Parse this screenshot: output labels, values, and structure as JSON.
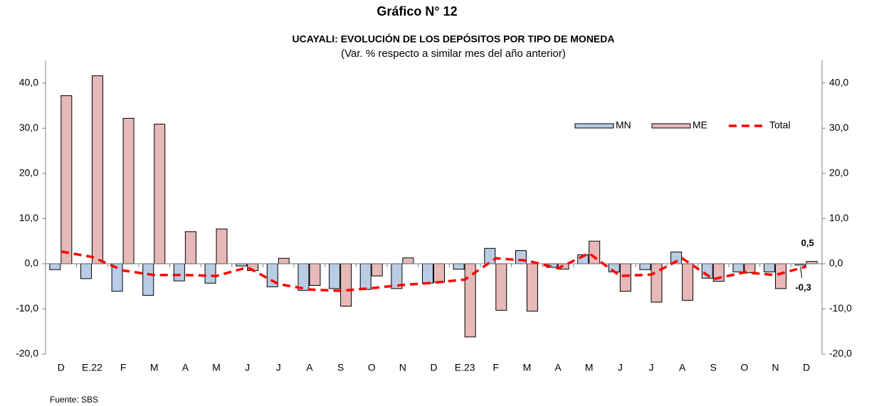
{
  "chart_data": {
    "type": "bar",
    "title": "Gráfico N° 12",
    "subtitle": "UCAYALI: EVOLUCIÓN DE LOS DEPÓSITOS POR TIPO DE MONEDA",
    "note": "(Var. % respecto a similar mes del año anterior)",
    "source": "Fuente: SBS",
    "categories": [
      "D",
      "E.22",
      "F",
      "M",
      "A",
      "M",
      "J",
      "J",
      "A",
      "S",
      "O",
      "N",
      "D",
      "E.23",
      "F",
      "M",
      "A",
      "M",
      "J",
      "J",
      "A",
      "S",
      "O",
      "N",
      "D"
    ],
    "series": [
      {
        "name": "MN",
        "type": "bar",
        "color": "#b8cce4",
        "values": [
          -1.3,
          -3.3,
          -6.1,
          -7.0,
          -3.8,
          -4.3,
          -0.5,
          -5.1,
          -5.9,
          -5.5,
          -5.7,
          -5.5,
          -4.3,
          -1.2,
          3.4,
          2.9,
          -0.8,
          2.0,
          -1.8,
          -1.3,
          2.6,
          -3.2,
          -1.8,
          -1.8,
          -0.3
        ],
        "value_labels": [
          null,
          null,
          null,
          null,
          null,
          null,
          null,
          null,
          null,
          null,
          null,
          null,
          null,
          null,
          null,
          null,
          null,
          null,
          null,
          null,
          null,
          null,
          null,
          null,
          "-0,3"
        ]
      },
      {
        "name": "ME",
        "type": "bar",
        "color": "#e6b9b8",
        "values": [
          37.2,
          41.6,
          32.2,
          30.9,
          7.1,
          7.7,
          -1.5,
          1.2,
          -4.8,
          -9.4,
          -2.7,
          1.3,
          -4.1,
          -16.2,
          -10.3,
          -10.5,
          -1.2,
          5.0,
          -6.1,
          -8.5,
          -8.1,
          -3.9,
          -2.0,
          -5.5,
          0.5
        ],
        "value_labels": [
          null,
          null,
          null,
          null,
          null,
          null,
          null,
          null,
          null,
          null,
          null,
          null,
          null,
          null,
          null,
          null,
          null,
          null,
          null,
          null,
          null,
          null,
          null,
          null,
          "0,5"
        ]
      },
      {
        "name": "Total",
        "type": "line",
        "color": "#ff0000",
        "values": [
          2.7,
          1.5,
          -1.5,
          -2.5,
          -2.5,
          -2.7,
          -0.8,
          -4.5,
          -5.7,
          -6.0,
          -5.4,
          -4.7,
          -4.2,
          -3.5,
          1.2,
          0.7,
          -1.0,
          2.3,
          -2.7,
          -2.4,
          1.2,
          -3.4,
          -1.9,
          -2.5,
          -0.6
        ]
      }
    ],
    "ylim": [
      -20,
      45
    ],
    "yticks": [
      {
        "value": -20,
        "label": "-20,0"
      },
      {
        "value": -10,
        "label": "-10,0"
      },
      {
        "value": 0,
        "label": "0,0"
      },
      {
        "value": 10,
        "label": "10,0"
      },
      {
        "value": 20,
        "label": "20,0"
      },
      {
        "value": 30,
        "label": "30,0"
      },
      {
        "value": 40,
        "label": "40,0"
      }
    ],
    "y2lim": [
      -20,
      45
    ],
    "y2ticks": [
      {
        "value": -20,
        "label": "-20,0"
      },
      {
        "value": -10,
        "label": "-10,0"
      },
      {
        "value": 0,
        "label": "0,0"
      },
      {
        "value": 10,
        "label": "10,0"
      },
      {
        "value": 20,
        "label": "20,0"
      },
      {
        "value": 30,
        "label": "30,0"
      },
      {
        "value": 40,
        "label": "40,0"
      }
    ],
    "legend": "upper right",
    "grid": false
  }
}
